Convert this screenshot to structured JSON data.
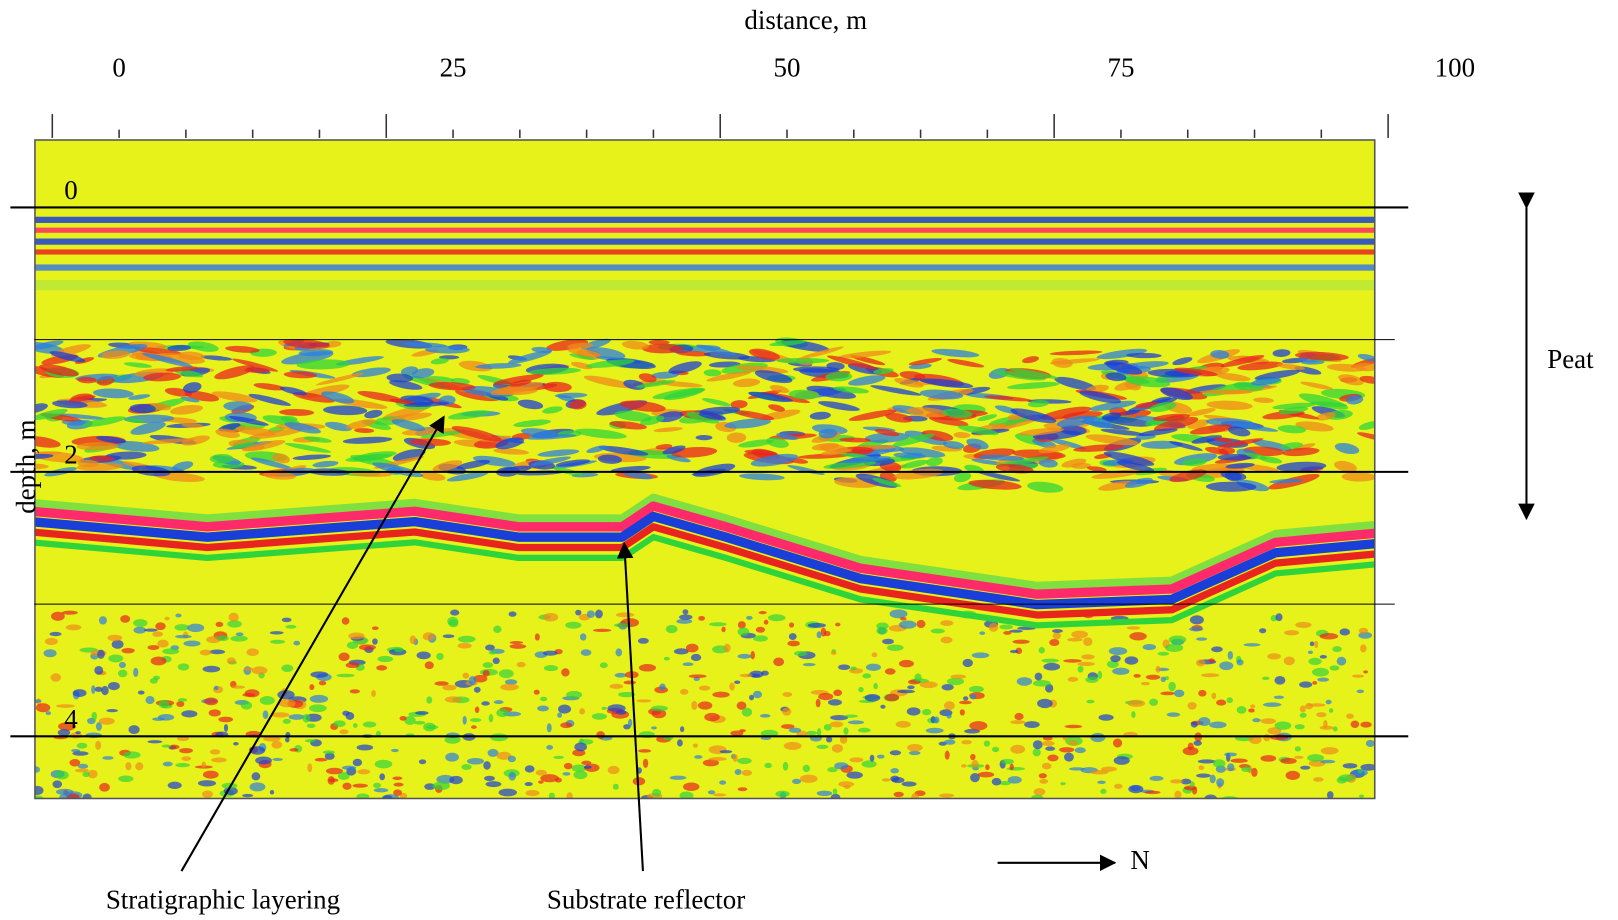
{
  "chart_data": {
    "type": "radargram",
    "x_label": "distance, m",
    "y_label": "depth, m",
    "xlim": [
      -6.3,
      94
    ],
    "ylim": [
      -0.51,
      4.47
    ],
    "xticks": [
      0,
      25,
      50,
      75,
      100
    ],
    "x_major_tick_marks": [
      -5,
      20,
      45,
      70,
      95
    ],
    "x_minor_tick_marks": [
      0,
      5,
      10,
      15,
      25,
      30,
      35,
      40,
      50,
      55,
      60,
      65,
      75,
      80,
      85,
      90
    ],
    "yticks": [
      0,
      2,
      4
    ],
    "y_minor_lines": [
      1,
      3
    ],
    "annotations": {
      "layering": "Stratigraphic layering",
      "reflector": "Substrate reflector",
      "unit": "Peat",
      "direction": "N"
    }
  }
}
